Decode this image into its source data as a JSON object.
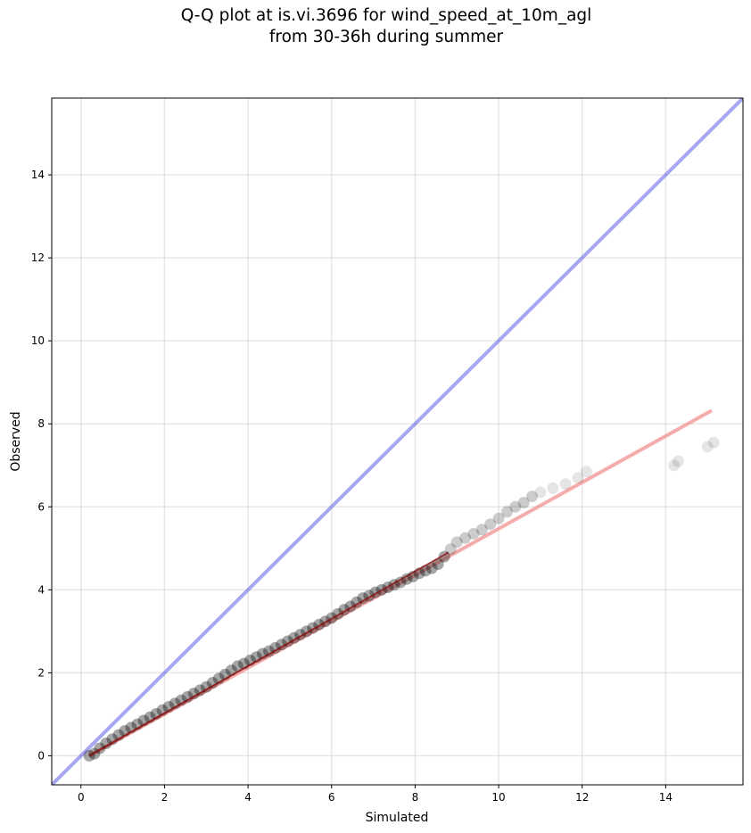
{
  "chart_data": {
    "type": "scatter",
    "title_line1": "Q-Q plot at is.vi.3696 for wind_speed_at_10m_agl",
    "title_line2": "from 30-36h during summer",
    "xlabel": "Simulated",
    "ylabel": "Observed",
    "xlim": [
      -0.7,
      15.85
    ],
    "ylim": [
      -0.7,
      15.85
    ],
    "xticks": [
      0,
      2,
      4,
      6,
      8,
      10,
      12,
      14
    ],
    "yticks": [
      0,
      2,
      4,
      6,
      8,
      10,
      12,
      14
    ],
    "grid": true,
    "reference_line": {
      "x": [
        -0.7,
        15.85
      ],
      "y": [
        -0.7,
        15.85
      ],
      "color": "#6a6aea"
    },
    "fit_line": {
      "x": [
        0.2,
        15.1
      ],
      "y": [
        0.0,
        8.32
      ],
      "color": "#f08080"
    },
    "fit_overlay": {
      "x": [
        0.2,
        8.8
      ],
      "y": [
        0.0,
        4.9
      ],
      "color": "#8b0000"
    },
    "points": {
      "color": "#000000",
      "x": [
        0.2,
        0.32,
        0.45,
        0.6,
        0.75,
        0.9,
        1.05,
        1.2,
        1.35,
        1.5,
        1.65,
        1.8,
        1.95,
        2.1,
        2.25,
        2.4,
        2.55,
        2.7,
        2.85,
        3.0,
        3.15,
        3.3,
        3.45,
        3.6,
        3.75,
        3.9,
        4.05,
        4.2,
        4.35,
        4.5,
        4.65,
        4.8,
        4.95,
        5.1,
        5.25,
        5.4,
        5.55,
        5.7,
        5.85,
        6.0,
        6.15,
        6.3,
        6.45,
        6.6,
        6.75,
        6.9,
        7.05,
        7.2,
        7.35,
        7.5,
        7.65,
        7.8,
        7.95,
        8.1,
        8.25,
        8.4,
        8.55,
        8.7,
        8.85,
        9.0,
        9.2,
        9.4,
        9.6,
        9.8,
        10.0,
        10.2,
        10.4,
        10.6,
        10.8,
        11.0,
        11.3,
        11.6,
        11.9,
        12.1,
        14.2,
        14.3,
        15.0,
        15.15
      ],
      "y": [
        0.0,
        0.05,
        0.18,
        0.3,
        0.4,
        0.5,
        0.6,
        0.68,
        0.76,
        0.85,
        0.93,
        1.01,
        1.1,
        1.18,
        1.26,
        1.34,
        1.42,
        1.5,
        1.58,
        1.66,
        1.76,
        1.86,
        1.96,
        2.06,
        2.16,
        2.22,
        2.3,
        2.38,
        2.46,
        2.52,
        2.6,
        2.68,
        2.76,
        2.84,
        2.92,
        3.0,
        3.08,
        3.16,
        3.24,
        3.32,
        3.42,
        3.52,
        3.6,
        3.7,
        3.8,
        3.86,
        3.94,
        4.0,
        4.06,
        4.12,
        4.18,
        4.26,
        4.32,
        4.4,
        4.46,
        4.52,
        4.62,
        4.8,
        4.98,
        5.15,
        5.25,
        5.35,
        5.45,
        5.58,
        5.72,
        5.88,
        6.0,
        6.1,
        6.25,
        6.35,
        6.45,
        6.55,
        6.7,
        6.85,
        7.0,
        7.1,
        7.45,
        7.55
      ]
    }
  }
}
